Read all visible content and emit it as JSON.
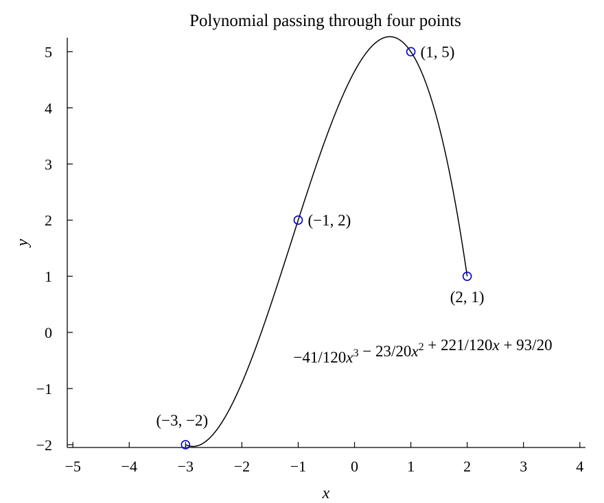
{
  "chart_data": {
    "type": "line",
    "title": "Polynomial passing through four points",
    "xlabel": "x",
    "ylabel": "y",
    "xlim": [
      -5.1,
      4.1
    ],
    "ylim": [
      -2.05,
      5.25
    ],
    "xticks": [
      {
        "value": -5,
        "label": "−5"
      },
      {
        "value": -4,
        "label": "−4"
      },
      {
        "value": -3,
        "label": "−3"
      },
      {
        "value": -2,
        "label": "−2"
      },
      {
        "value": -1,
        "label": "−1"
      },
      {
        "value": 0,
        "label": "0"
      },
      {
        "value": 1,
        "label": "1"
      },
      {
        "value": 2,
        "label": "2"
      },
      {
        "value": 3,
        "label": "3"
      },
      {
        "value": 4,
        "label": "4"
      }
    ],
    "yticks": [
      {
        "value": -2,
        "label": "−2"
      },
      {
        "value": -1,
        "label": "−1"
      },
      {
        "value": 0,
        "label": "0"
      },
      {
        "value": 1,
        "label": "1"
      },
      {
        "value": 2,
        "label": "2"
      },
      {
        "value": 3,
        "label": "3"
      },
      {
        "value": 4,
        "label": "4"
      },
      {
        "value": 5,
        "label": "5"
      }
    ],
    "grid": false,
    "curve": {
      "coefficients": [
        -0.341667,
        -1.15,
        1.841667,
        4.65
      ],
      "x_range": [
        -3,
        2
      ],
      "color": "#000000"
    },
    "points": [
      {
        "x": -3,
        "y": -2,
        "label": "(−3, −2)",
        "label_position": "above-left"
      },
      {
        "x": -1,
        "y": 2,
        "label": "(−1, 2)",
        "label_position": "right"
      },
      {
        "x": 1,
        "y": 5,
        "label": "(1, 5)",
        "label_position": "right"
      },
      {
        "x": 2,
        "y": 1,
        "label": "(2, 1)",
        "label_position": "below"
      }
    ],
    "point_color": "#0000cc",
    "equation": {
      "parts": [
        {
          "text": "−41/120"
        },
        {
          "text": "x",
          "var": true
        },
        {
          "text": "3",
          "sup": true
        },
        {
          "text": " − 23/20"
        },
        {
          "text": "x",
          "var": true
        },
        {
          "text": "2",
          "sup": true
        },
        {
          "text": " + 221/120"
        },
        {
          "text": "x",
          "var": true
        },
        {
          "text": " + 93/20"
        }
      ]
    }
  }
}
